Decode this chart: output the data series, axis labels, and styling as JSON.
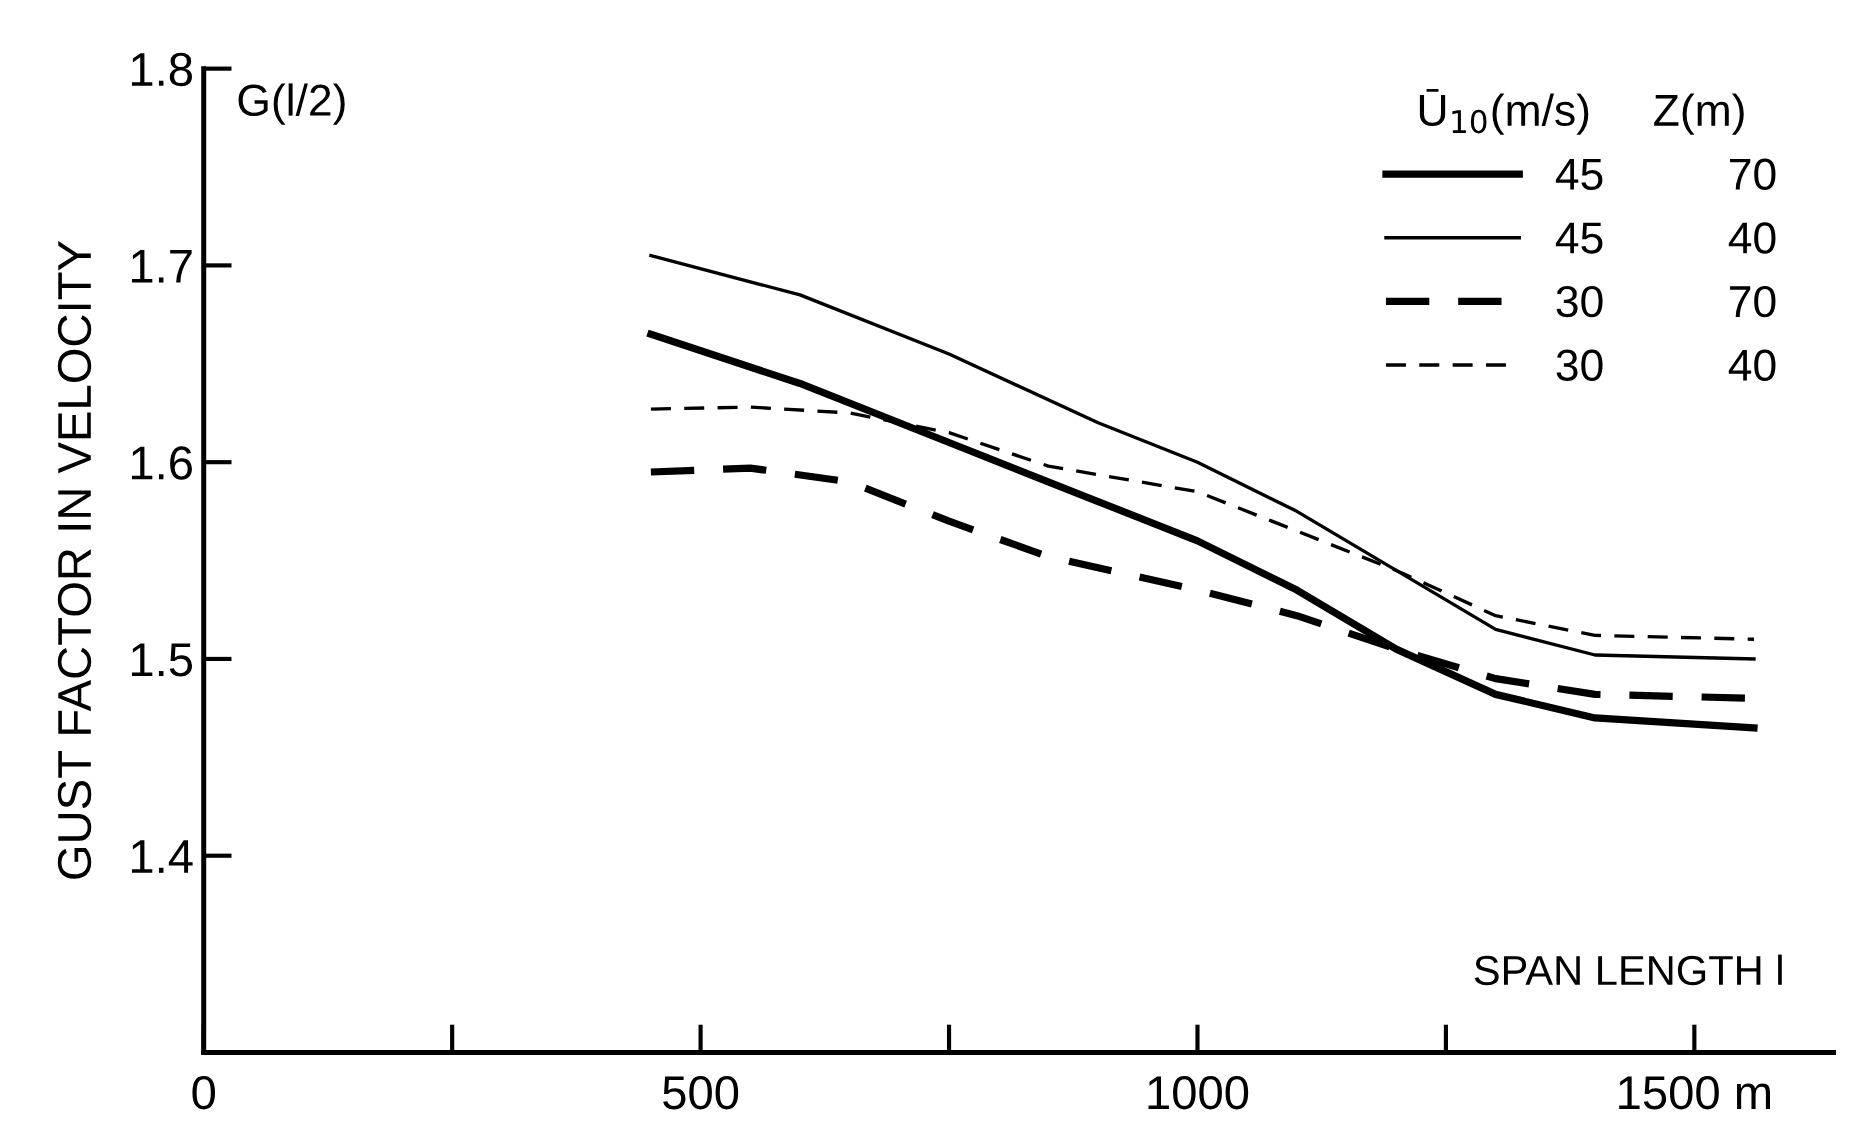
{
  "chart_data": {
    "type": "line",
    "title": "G(l/2)",
    "xlabel": "SPAN LENGTH l",
    "ylabel": "GUST FACTOR IN VELOCITY",
    "legend_title": "Ū$_{10}$(m/s)     Z(m)",
    "legend": "top right",
    "grid": false,
    "marker": "none",
    "xlim": [
      0,
      1640
    ],
    "xticks": [
      0,
      {
        "value": 250,
        "label": null
      },
      500,
      {
        "value": 750,
        "label": null
      },
      1000,
      {
        "value": 1250,
        "label": null
      },
      {
        "value": 1500,
        "label": "1500 m"
      }
    ],
    "ylim": [
      1.3,
      1.8
    ],
    "yticks": [
      {
        "value": 1.4,
        "label": "1.4"
      },
      {
        "value": 1.5,
        "label": "1.5"
      },
      {
        "value": 1.6,
        "label": "1.6"
      },
      {
        "value": 1.7,
        "label": "1.7"
      },
      {
        "value": 1.8,
        "label": "1.8"
      }
    ],
    "series": [
      {
        "name": "45          70",
        "color": "#000000",
        "line_style": "solid",
        "x": [
          450,
          600,
          750,
          900,
          1000,
          1100,
          1200,
          1300,
          1400,
          1560
        ],
        "values": [
          1.665,
          1.64,
          1.61,
          1.58,
          1.56,
          1.535,
          1.505,
          1.482,
          1.47,
          1.465
        ]
      },
      {
        "name": "45          40",
        "color": "#000000",
        "line_style": "solid",
        "x": [
          450,
          600,
          750,
          900,
          1000,
          1100,
          1200,
          1300,
          1400,
          1560
        ],
        "values": [
          1.705,
          1.685,
          1.655,
          1.62,
          1.6,
          1.575,
          1.545,
          1.515,
          1.502,
          1.5
        ]
      },
      {
        "name": "30          70",
        "color": "#000000",
        "line_style": "dashed",
        "x": [
          450,
          550,
          650,
          750,
          850,
          1000,
          1100,
          1200,
          1300,
          1400,
          1560
        ],
        "values": [
          1.595,
          1.597,
          1.59,
          1.57,
          1.552,
          1.535,
          1.522,
          1.505,
          1.49,
          1.482,
          1.48
        ]
      },
      {
        "name": "30          40",
        "color": "#000000",
        "line_style": "dashed",
        "x": [
          450,
          550,
          650,
          750,
          850,
          1000,
          1100,
          1200,
          1300,
          1400,
          1560
        ],
        "values": [
          1.627,
          1.628,
          1.625,
          1.615,
          1.598,
          1.585,
          1.565,
          1.545,
          1.522,
          1.512,
          1.51
        ]
      }
    ]
  }
}
